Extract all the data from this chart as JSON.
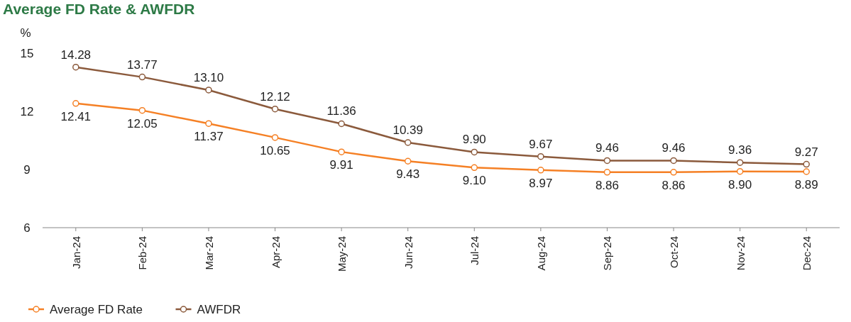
{
  "chart_data": {
    "type": "line",
    "title": "Average FD Rate & AWFDR",
    "ylabel": "%",
    "categories": [
      "Jan-24",
      "Feb-24",
      "Mar-24",
      "Apr-24",
      "May-24",
      "Jun-24",
      "Jul-24",
      "Aug-24",
      "Sep-24",
      "Oct-24",
      "Nov-24",
      "Dec-24"
    ],
    "series": [
      {
        "name": "Average FD Rate",
        "color": "#f58025",
        "values": [
          12.41,
          12.05,
          11.37,
          10.65,
          9.91,
          9.43,
          9.1,
          8.97,
          8.86,
          8.86,
          8.9,
          8.89
        ],
        "value_labels": [
          "12.41",
          "12.05",
          "11.37",
          "10.65",
          "9.91",
          "9.43",
          "9.10",
          "8.97",
          "8.86",
          "8.86",
          "8.90",
          "8.89"
        ]
      },
      {
        "name": "AWFDR",
        "color": "#8b5a3c",
        "values": [
          14.28,
          13.77,
          13.1,
          12.12,
          11.36,
          10.39,
          9.9,
          9.67,
          9.46,
          9.46,
          9.36,
          9.27
        ],
        "value_labels": [
          "14.28",
          "13.77",
          "13.10",
          "12.12",
          "11.36",
          "10.39",
          "9.90",
          "9.67",
          "9.46",
          "9.46",
          "9.36",
          "9.27"
        ]
      }
    ],
    "ylim": [
      6,
      15
    ],
    "yticks": [
      6,
      9,
      12,
      15
    ],
    "grid": false,
    "legend": "bottom left",
    "marker": "circle",
    "line_style": "solid"
  }
}
